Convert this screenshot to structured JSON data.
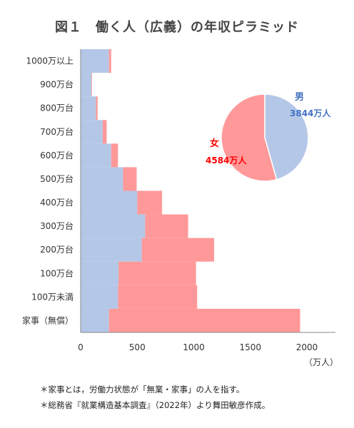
{
  "title": "図１　働く人（広義）の年収ピラミッド",
  "notes": [
    "＊家事とは，労働力状態が「無業・家事」の人を指す。",
    "＊総務省『就業構造基本調査』（2022年）より舞田敏彦作成。"
  ],
  "colors": {
    "male": "#b4c7e7",
    "female": "#ff9999",
    "male_text": "#4472c4",
    "female_text": "#ff0000"
  },
  "chart_data": [
    {
      "type": "bar",
      "orientation": "horizontal",
      "stacked": true,
      "categories": [
        "1000万以上",
        "900万台",
        "800万台",
        "700万台",
        "600万台",
        "500万台",
        "400万台",
        "300万台",
        "200万台",
        "100万台",
        "100万未満",
        "家事（無償）"
      ],
      "series": [
        {
          "name": "男",
          "values": [
            250,
            95,
            135,
            195,
            270,
            375,
            500,
            570,
            540,
            335,
            330,
            250
          ]
        },
        {
          "name": "女",
          "values": [
            20,
            5,
            15,
            35,
            60,
            120,
            220,
            380,
            640,
            685,
            700,
            1690
          ]
        }
      ],
      "xlim": [
        0,
        2000
      ],
      "xticks": [
        0,
        500,
        1000,
        1500,
        2000
      ],
      "xunit": "（万人）",
      "grid": false
    },
    {
      "type": "pie",
      "slices": [
        {
          "label": "男",
          "value_label": "3844万人",
          "value": 3844
        },
        {
          "label": "女",
          "value_label": "4584万人",
          "value": 4584
        }
      ]
    }
  ]
}
